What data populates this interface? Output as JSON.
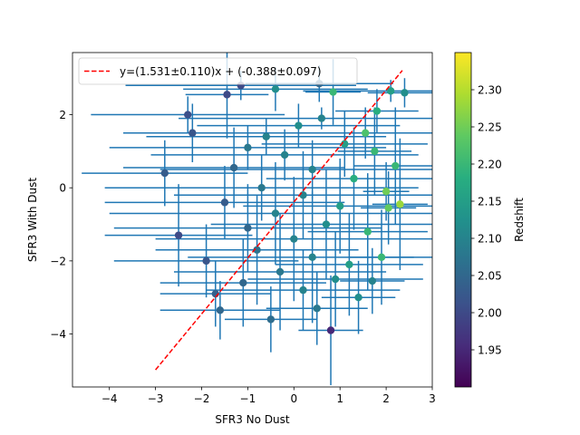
{
  "chart_data": {
    "type": "scatter",
    "title": "",
    "xlabel": "SFR3 No Dust",
    "ylabel": "SFR3 With Dust",
    "xlim": [
      -4.8,
      3.0
    ],
    "ylim": [
      -5.45,
      3.7
    ],
    "x_ticks": [
      -4,
      -3,
      -2,
      -1,
      0,
      1,
      2,
      3
    ],
    "y_ticks": [
      -4,
      -2,
      0,
      2
    ],
    "x_tick_labels": [
      "−4",
      "−3",
      "−2",
      "−1",
      "0",
      "1",
      "2",
      "3"
    ],
    "y_tick_labels": [
      "−4",
      "−2",
      "0",
      "2"
    ],
    "grid": false,
    "legend": {
      "placement": "top-left",
      "entries": [
        {
          "label": "y=(1.531±0.110)x + (-0.388±0.097)",
          "style": "dashed",
          "color": "#ff0000"
        }
      ]
    },
    "fit_line": {
      "slope": 1.531,
      "intercept": -0.388,
      "x_range": [
        -3.0,
        2.35
      ],
      "color": "#ff0000"
    },
    "errorbar_color": "#1f77b4",
    "colorbar": {
      "label": "Redshift",
      "colormap": "viridis",
      "min": 1.9,
      "max": 2.35,
      "ticks": [
        1.95,
        2.0,
        2.05,
        2.1,
        2.15,
        2.2,
        2.25,
        2.3
      ],
      "tick_labels": [
        "1.95",
        "2.00",
        "2.05",
        "2.10",
        "2.15",
        "2.20",
        "2.25",
        "2.30"
      ]
    },
    "points": [
      {
        "x": -1.15,
        "y": 2.8,
        "z": 2.0,
        "xerr": 2.5,
        "yerr": 0.4
      },
      {
        "x": 0.55,
        "y": 2.85,
        "z": 2.05,
        "xerr": 1.6,
        "yerr": 0.5
      },
      {
        "x": -0.4,
        "y": 2.7,
        "z": 2.12,
        "xerr": 2.0,
        "yerr": 0.6
      },
      {
        "x": 2.1,
        "y": 2.65,
        "z": 2.15,
        "xerr": 1.9,
        "yerr": 0.3
      },
      {
        "x": 2.4,
        "y": 2.6,
        "z": 2.12,
        "xerr": 0.8,
        "yerr": 0.4
      },
      {
        "x": 0.85,
        "y": 2.62,
        "z": 2.2,
        "xerr": 0.6,
        "yerr": 0.9
      },
      {
        "x": -1.45,
        "y": 2.55,
        "z": 2.0,
        "xerr": 0.9,
        "yerr": 1.2
      },
      {
        "x": -1.6,
        "y": -3.35,
        "z": 2.05,
        "xerr": 1.3,
        "yerr": 0.8
      },
      {
        "x": 0.8,
        "y": -3.9,
        "z": 1.95,
        "xerr": 0.7,
        "yerr": 1.5
      },
      {
        "x": 2.2,
        "y": 0.6,
        "z": 2.2,
        "xerr": 0.9,
        "yerr": 1.6
      },
      {
        "x": 2.3,
        "y": -0.45,
        "z": 2.28,
        "xerr": 0.6,
        "yerr": 1.8
      },
      {
        "x": 2.0,
        "y": -0.1,
        "z": 2.25,
        "xerr": 0.5,
        "yerr": 0.8
      },
      {
        "x": 1.7,
        "y": -2.55,
        "z": 2.1,
        "xerr": 0.7,
        "yerr": 0.9
      },
      {
        "x": 1.55,
        "y": 1.5,
        "z": 2.22,
        "xerr": 2.4,
        "yerr": 0.7
      },
      {
        "x": 0.6,
        "y": 1.9,
        "z": 2.1,
        "xerr": 3.1,
        "yerr": 0.3
      },
      {
        "x": 0.1,
        "y": 1.7,
        "z": 2.12,
        "xerr": 2.2,
        "yerr": 0.6
      },
      {
        "x": -0.6,
        "y": 1.4,
        "z": 2.1,
        "xerr": 2.6,
        "yerr": 0.5
      },
      {
        "x": -1.0,
        "y": 1.1,
        "z": 2.08,
        "xerr": 3.0,
        "yerr": 0.6
      },
      {
        "x": 1.1,
        "y": 1.2,
        "z": 2.15,
        "xerr": 1.8,
        "yerr": 0.9
      },
      {
        "x": -0.2,
        "y": 0.9,
        "z": 2.1,
        "xerr": 2.9,
        "yerr": 0.7
      },
      {
        "x": 0.4,
        "y": 0.5,
        "z": 2.1,
        "xerr": 3.3,
        "yerr": 0.8
      },
      {
        "x": -1.3,
        "y": 0.55,
        "z": 2.05,
        "xerr": 2.4,
        "yerr": 1.1
      },
      {
        "x": 1.3,
        "y": 0.25,
        "z": 2.18,
        "xerr": 1.9,
        "yerr": 1.4
      },
      {
        "x": -0.7,
        "y": 0.0,
        "z": 2.08,
        "xerr": 3.4,
        "yerr": 0.9
      },
      {
        "x": 0.2,
        "y": -0.2,
        "z": 2.1,
        "xerr": 2.8,
        "yerr": 1.2
      },
      {
        "x": 1.0,
        "y": -0.5,
        "z": 2.15,
        "xerr": 2.1,
        "yerr": 1.3
      },
      {
        "x": -1.5,
        "y": -0.4,
        "z": 2.03,
        "xerr": 2.6,
        "yerr": 1.0
      },
      {
        "x": -0.4,
        "y": -0.7,
        "z": 2.1,
        "xerr": 3.6,
        "yerr": 1.4
      },
      {
        "x": 0.7,
        "y": -1.0,
        "z": 2.12,
        "xerr": 2.5,
        "yerr": 1.5
      },
      {
        "x": -1.0,
        "y": -1.1,
        "z": 2.05,
        "xerr": 2.9,
        "yerr": 1.2
      },
      {
        "x": 1.6,
        "y": -1.2,
        "z": 2.2,
        "xerr": 1.3,
        "yerr": 1.6
      },
      {
        "x": 0.0,
        "y": -1.4,
        "z": 2.1,
        "xerr": 3.0,
        "yerr": 1.7
      },
      {
        "x": -0.8,
        "y": -1.7,
        "z": 2.07,
        "xerr": 2.2,
        "yerr": 1.5
      },
      {
        "x": 0.4,
        "y": -1.9,
        "z": 2.1,
        "xerr": 2.7,
        "yerr": 1.8
      },
      {
        "x": -1.9,
        "y": -2.0,
        "z": 2.02,
        "xerr": 2.0,
        "yerr": 1.0
      },
      {
        "x": 1.2,
        "y": -2.1,
        "z": 2.15,
        "xerr": 1.6,
        "yerr": 1.4
      },
      {
        "x": -0.3,
        "y": -2.3,
        "z": 2.08,
        "xerr": 2.3,
        "yerr": 1.6
      },
      {
        "x": 0.9,
        "y": -2.5,
        "z": 2.12,
        "xerr": 1.9,
        "yerr": 1.3
      },
      {
        "x": -1.1,
        "y": -2.6,
        "z": 2.05,
        "xerr": 1.8,
        "yerr": 1.2
      },
      {
        "x": 0.2,
        "y": -2.8,
        "z": 2.1,
        "xerr": 2.1,
        "yerr": 1.1
      },
      {
        "x": -2.5,
        "y": -1.3,
        "z": 2.0,
        "xerr": 1.6,
        "yerr": 1.4
      },
      {
        "x": -2.8,
        "y": 0.4,
        "z": 2.03,
        "xerr": 1.8,
        "yerr": 0.9
      },
      {
        "x": 1.8,
        "y": 2.1,
        "z": 2.18,
        "xerr": 0.9,
        "yerr": 0.6
      },
      {
        "x": -2.2,
        "y": 1.5,
        "z": 2.02,
        "xerr": 1.5,
        "yerr": 0.8
      },
      {
        "x": 1.9,
        "y": -1.9,
        "z": 2.2,
        "xerr": 0.7,
        "yerr": 1.3
      },
      {
        "x": -1.7,
        "y": -2.9,
        "z": 2.04,
        "xerr": 1.2,
        "yerr": 0.9
      },
      {
        "x": 0.5,
        "y": -3.3,
        "z": 2.08,
        "xerr": 1.1,
        "yerr": 1.0
      },
      {
        "x": -0.5,
        "y": -3.6,
        "z": 2.06,
        "xerr": 1.0,
        "yerr": 0.9
      },
      {
        "x": 1.4,
        "y": -3.0,
        "z": 2.12,
        "xerr": 0.8,
        "yerr": 1.0
      },
      {
        "x": -2.3,
        "y": 2.0,
        "z": 2.01,
        "xerr": 2.1,
        "yerr": 0.5
      },
      {
        "x": 2.05,
        "y": -0.55,
        "z": 2.24,
        "xerr": 0.6,
        "yerr": 1.0
      },
      {
        "x": 1.75,
        "y": 1.0,
        "z": 2.2,
        "xerr": 0.8,
        "yerr": 1.2
      }
    ]
  }
}
